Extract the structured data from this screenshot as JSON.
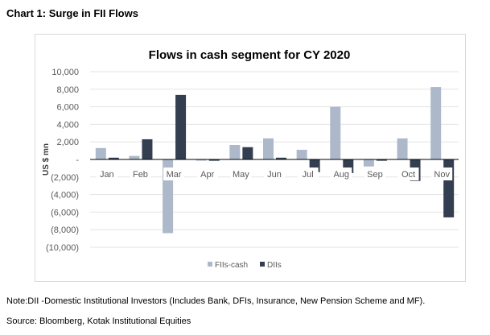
{
  "heading": "Chart 1: Surge in FII Flows",
  "note": "Note:DII -Domestic Institutional Investors (Includes Bank, DFIs, Insurance, New Pension Scheme and MF).",
  "source": "Source: Bloomberg, Kotak Institutional Equities",
  "chart_data": {
    "type": "bar",
    "title": "Flows in cash segment for CY 2020",
    "xlabel": "",
    "ylabel": "US $ mn",
    "ylim": [
      -10000,
      10000
    ],
    "yticks": [
      10000,
      8000,
      6000,
      4000,
      2000,
      0,
      -2000,
      -4000,
      -6000,
      -8000,
      -10000
    ],
    "ytick_labels": [
      "10,000",
      "8,000",
      "6,000",
      "4,000",
      "2,000",
      "-",
      "(2,000)",
      "(4,000)",
      "(6,000)",
      "(8,000)",
      "(10,000)"
    ],
    "categories": [
      "Jan",
      "Feb",
      "Mar",
      "Apr",
      "May",
      "Jun",
      "Jul",
      "Aug",
      "Sep",
      "Oct",
      "Nov"
    ],
    "series": [
      {
        "name": "FIIs-cash",
        "color": "#adb9ca",
        "values": [
          1300,
          400,
          -8400,
          -100,
          1650,
          2400,
          1100,
          6000,
          -800,
          2400,
          8250
        ]
      },
      {
        "name": "DIIs",
        "color": "#333f50",
        "values": [
          200,
          2300,
          7350,
          -150,
          1400,
          200,
          -1450,
          -1550,
          -150,
          -2450,
          -6600
        ]
      }
    ],
    "grid": true,
    "legend": "bottom"
  }
}
